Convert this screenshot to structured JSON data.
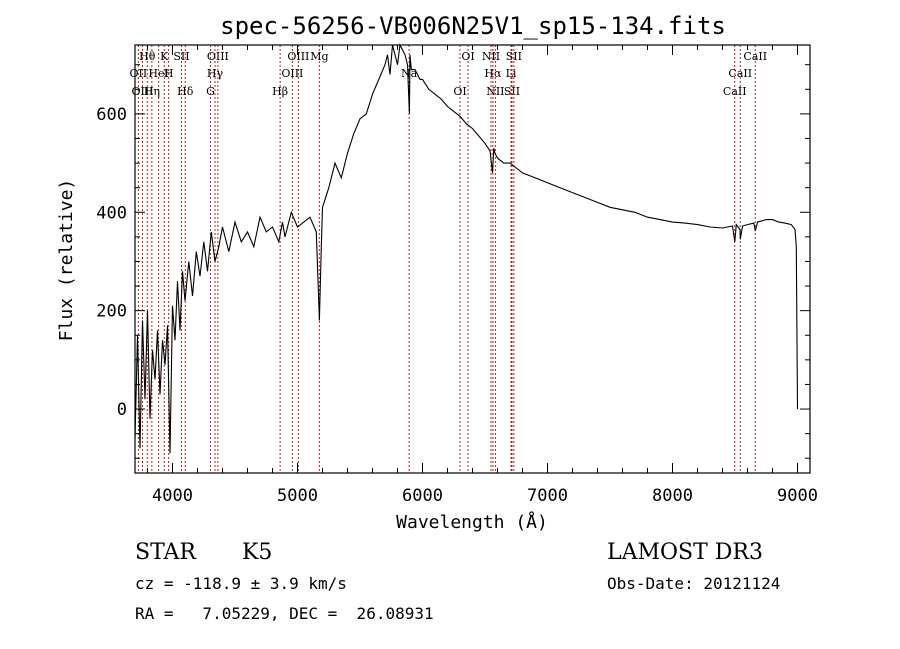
{
  "chart_data": {
    "type": "line",
    "title": "spec-56256-VB006N25V1_sp15-134.fits",
    "xlabel": "Wavelength (Å)",
    "ylabel": "Flux (relative)",
    "xlim": [
      3700,
      9100
    ],
    "ylim": [
      -130,
      740
    ],
    "x_ticks": [
      4000,
      5000,
      6000,
      7000,
      8000,
      9000
    ],
    "y_ticks": [
      0,
      200,
      400,
      600
    ],
    "series": [
      {
        "name": "flux",
        "x": [
          3700,
          3720,
          3740,
          3760,
          3780,
          3800,
          3820,
          3840,
          3860,
          3880,
          3900,
          3920,
          3940,
          3960,
          3980,
          4000,
          4020,
          4040,
          4060,
          4080,
          4100,
          4130,
          4160,
          4190,
          4220,
          4250,
          4280,
          4310,
          4340,
          4370,
          4400,
          4450,
          4500,
          4550,
          4600,
          4650,
          4700,
          4750,
          4800,
          4850,
          4880,
          4900,
          4950,
          5000,
          5050,
          5100,
          5150,
          5175,
          5190,
          5200,
          5250,
          5300,
          5350,
          5400,
          5450,
          5500,
          5550,
          5600,
          5650,
          5700,
          5720,
          5740,
          5760,
          5780,
          5800,
          5820,
          5840,
          5860,
          5880,
          5895,
          5900,
          5910,
          5940,
          5980,
          6000,
          6050,
          6100,
          6150,
          6200,
          6250,
          6300,
          6350,
          6400,
          6450,
          6500,
          6540,
          6560,
          6570,
          6580,
          6600,
          6650,
          6700,
          6750,
          6800,
          6900,
          7000,
          7100,
          7200,
          7300,
          7400,
          7500,
          7600,
          7700,
          7800,
          7900,
          8000,
          8100,
          8200,
          8300,
          8400,
          8480,
          8498,
          8510,
          8540,
          8542,
          8560,
          8600,
          8650,
          8662,
          8680,
          8750,
          8800,
          8850,
          8900,
          8950,
          8980,
          8990,
          9000
        ],
        "y": [
          -60,
          150,
          -80,
          180,
          20,
          200,
          -20,
          120,
          60,
          160,
          30,
          140,
          90,
          170,
          -90,
          210,
          140,
          260,
          160,
          280,
          220,
          300,
          230,
          320,
          270,
          340,
          280,
          360,
          300,
          330,
          370,
          320,
          380,
          340,
          360,
          330,
          390,
          360,
          370,
          340,
          380,
          350,
          400,
          370,
          380,
          390,
          360,
          180,
          330,
          410,
          450,
          500,
          470,
          520,
          560,
          590,
          600,
          640,
          670,
          700,
          720,
          680,
          740,
          720,
          700,
          740,
          730,
          720,
          700,
          600,
          720,
          690,
          690,
          670,
          670,
          650,
          640,
          630,
          615,
          605,
          595,
          580,
          570,
          555,
          540,
          525,
          480,
          530,
          520,
          510,
          500,
          500,
          490,
          480,
          470,
          460,
          450,
          440,
          430,
          420,
          410,
          405,
          400,
          390,
          385,
          380,
          378,
          375,
          370,
          368,
          372,
          340,
          375,
          365,
          345,
          372,
          375,
          378,
          362,
          380,
          385,
          385,
          380,
          378,
          375,
          365,
          330,
          0
        ]
      }
    ],
    "spectral_lines": [
      {
        "label": "Hθ",
        "wavelength": 3798
      },
      {
        "label": "OII",
        "wavelength": 3727
      },
      {
        "label": "OIII",
        "wavelength": 3760
      },
      {
        "label": "K",
        "wavelength": 3934
      },
      {
        "label": "HeI",
        "wavelength": 3889
      },
      {
        "label": "Hη",
        "wavelength": 3835
      },
      {
        "label": "SII",
        "wavelength": 4072
      },
      {
        "label": "H",
        "wavelength": 3969
      },
      {
        "label": "Hδ",
        "wavelength": 4102
      },
      {
        "label": "OIII",
        "wavelength": 4363
      },
      {
        "label": "Hγ",
        "wavelength": 4340
      },
      {
        "label": "G",
        "wavelength": 4304
      },
      {
        "label": "OIII",
        "wavelength": 5007
      },
      {
        "label": "OIII",
        "wavelength": 4959
      },
      {
        "label": "Hβ",
        "wavelength": 4861
      },
      {
        "label": "Mg",
        "wavelength": 5175
      },
      {
        "label": "Na",
        "wavelength": 5893
      },
      {
        "label": "OI",
        "wavelength": 6300
      },
      {
        "label": "OI",
        "wavelength": 6364
      },
      {
        "label": "Hα",
        "wavelength": 6563
      },
      {
        "label": "SII",
        "wavelength": 6716
      },
      {
        "label": "NII",
        "wavelength": 6548
      },
      {
        "label": "Li",
        "wavelength": 6708
      },
      {
        "label": "NII",
        "wavelength": 6583
      },
      {
        "label": "SII",
        "wavelength": 6731
      },
      {
        "label": "CaII",
        "wavelength": 8542
      },
      {
        "label": "CaII",
        "wavelength": 8498
      },
      {
        "label": "CaII",
        "wavelength": 8662
      }
    ]
  },
  "info": {
    "class": "STAR",
    "subclass": "K5",
    "survey": "LAMOST DR3",
    "cz": "cz = -118.9 ± 3.9 km/s",
    "obs_date": "Obs-Date: 20121124",
    "radec": "RA =   7.05229, DEC =  26.08931"
  }
}
